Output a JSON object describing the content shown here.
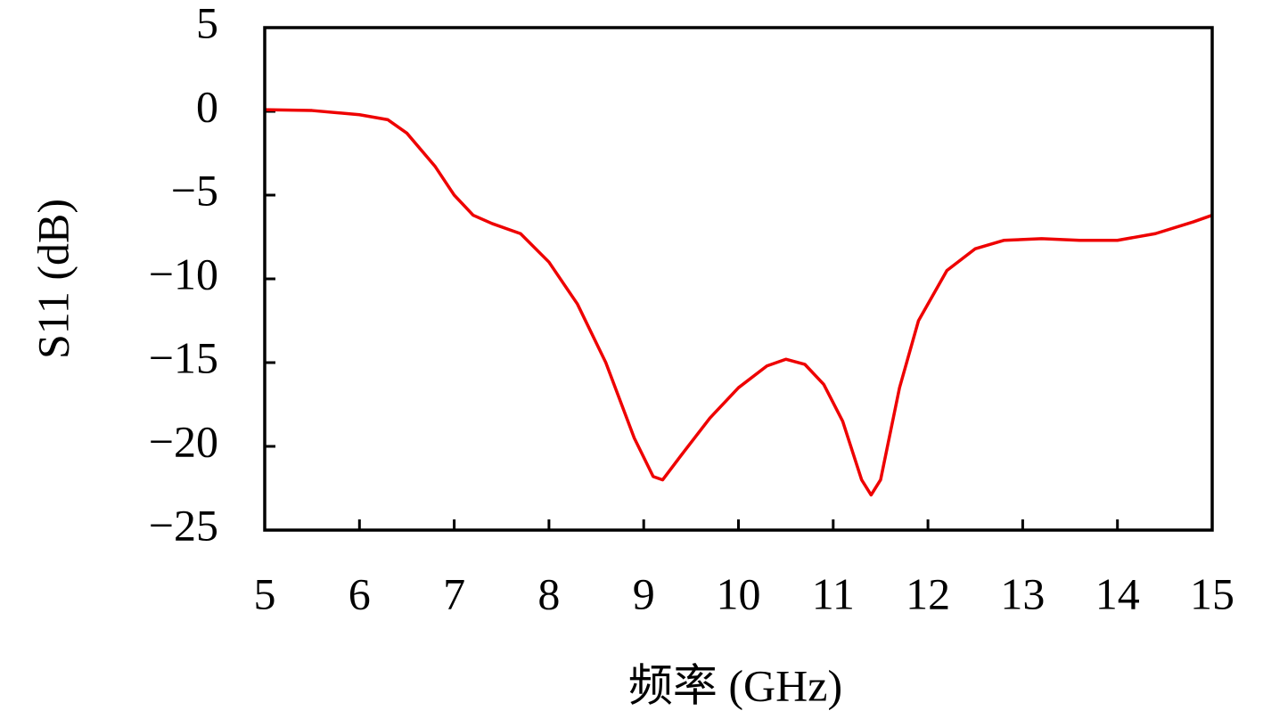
{
  "chart_data": {
    "type": "line",
    "x_label": "频率 (GHz)",
    "y_label": "S11 (dB)",
    "xlim": [
      5,
      15
    ],
    "xticks": [
      5,
      6,
      7,
      8,
      9,
      10,
      11,
      12,
      13,
      14,
      15
    ],
    "ylim": [
      -25,
      5
    ],
    "yticks": [
      {
        "value": -25,
        "label": "−25"
      },
      {
        "value": -20,
        "label": "−20"
      },
      {
        "value": -15,
        "label": "−15"
      },
      {
        "value": -10,
        "label": "−10"
      },
      {
        "value": -5,
        "label": "−5"
      },
      0,
      5
    ],
    "x": [
      5.0,
      5.5,
      6.0,
      6.3,
      6.5,
      6.8,
      7.0,
      7.2,
      7.4,
      7.7,
      8.0,
      8.3,
      8.6,
      8.9,
      9.1,
      9.2,
      9.4,
      9.7,
      10.0,
      10.3,
      10.5,
      10.7,
      10.9,
      11.1,
      11.3,
      11.4,
      11.5,
      11.7,
      11.9,
      12.2,
      12.5,
      12.8,
      13.2,
      13.6,
      14.0,
      14.4,
      14.8,
      15.0
    ],
    "series": [
      {
        "color": "#ee0000",
        "values": [
          0.1,
          0.05,
          -0.2,
          -0.5,
          -1.3,
          -3.3,
          -5,
          -6.2,
          -6.7,
          -7.3,
          -9,
          -11.5,
          -15,
          -19.5,
          -21.8,
          -22,
          -20.5,
          -18.3,
          -16.5,
          -15.2,
          -14.8,
          -15.1,
          -16.3,
          -18.5,
          -22,
          -22.9,
          -22,
          -16.5,
          -12.5,
          -9.5,
          -8.2,
          -7.7,
          -7.6,
          -7.7,
          -7.7,
          -7.3,
          -6.6,
          -6.2
        ]
      }
    ]
  }
}
